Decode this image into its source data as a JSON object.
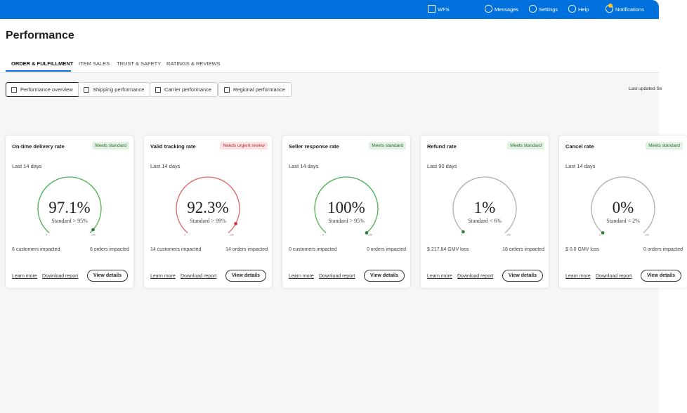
{
  "header": {
    "nav": [
      "WFS",
      "Messages",
      "Settings",
      "Help",
      "Notifications"
    ]
  },
  "page": {
    "title": "Performance",
    "tabs": [
      "ORDER & FULFILLMENT",
      "ITEM SALES",
      "TRUST & SAFETY",
      "RATINGS & REVIEWS"
    ],
    "subtabs": [
      "Performance overview",
      "Shipping performance",
      "Carrier performance",
      "Regional performance"
    ],
    "last_updated": "Last updated Se"
  },
  "cards": [
    {
      "title": "On-time delivery rate",
      "status": "Meets standard",
      "status_kind": "ok",
      "period": "Last 14 days",
      "gauge": {
        "value": 97.1,
        "label": "97.1%"
      },
      "standard": "Standard > 95%",
      "scale": [
        0,
        100
      ],
      "arc_color": "#4caf50",
      "dot_color": "#2e7d32",
      "left": "6 customers impacted",
      "right": "6 orders impacted"
    },
    {
      "title": "Valid tracking rate",
      "status": "Needs urgent review",
      "status_kind": "bad",
      "period": "Last 14 days",
      "gauge": {
        "value": 92.3,
        "label": "92.3%"
      },
      "standard": "Standard > 99%",
      "scale": [
        0,
        100
      ],
      "arc_color": "#e06666",
      "dot_color": "#d32f2f",
      "left": "14 customers impacted",
      "right": "14 orders impacted"
    },
    {
      "title": "Seller response rate",
      "status": "Meets standard",
      "status_kind": "ok",
      "period": "Last 14 days",
      "gauge": {
        "value": 100,
        "label": "100%"
      },
      "standard": "Standard > 95%",
      "scale": [
        0,
        100
      ],
      "arc_color": "#4caf50",
      "dot_color": "#2e7d32",
      "left": "0 customers impacted",
      "right": "0 orders impacted"
    },
    {
      "title": "Refund rate",
      "status": "Meets standard",
      "status_kind": "ok",
      "period": "Last 90 days",
      "gauge": {
        "value": 1,
        "label": "1%"
      },
      "standard": "Standard < 6%",
      "scale": [
        0,
        100
      ],
      "arc_color": "#b0b0b0",
      "dot_color": "#2e7d32",
      "left": "$ 217.84 GMV loss",
      "right": "18 orders impacted"
    },
    {
      "title": "Cancel rate",
      "status": "Meets standard",
      "status_kind": "ok",
      "period": "Last 14 days",
      "gauge": {
        "value": 0,
        "label": "0%"
      },
      "standard": "Standard < 2%",
      "scale": [
        0,
        100
      ],
      "arc_color": "#b0b0b0",
      "dot_color": "#2e7d32",
      "left": "$ 0.0 GMV loss",
      "right": "0 orders impacted"
    }
  ],
  "card_actions": [
    "Learn more",
    "Download report",
    "View details"
  ]
}
